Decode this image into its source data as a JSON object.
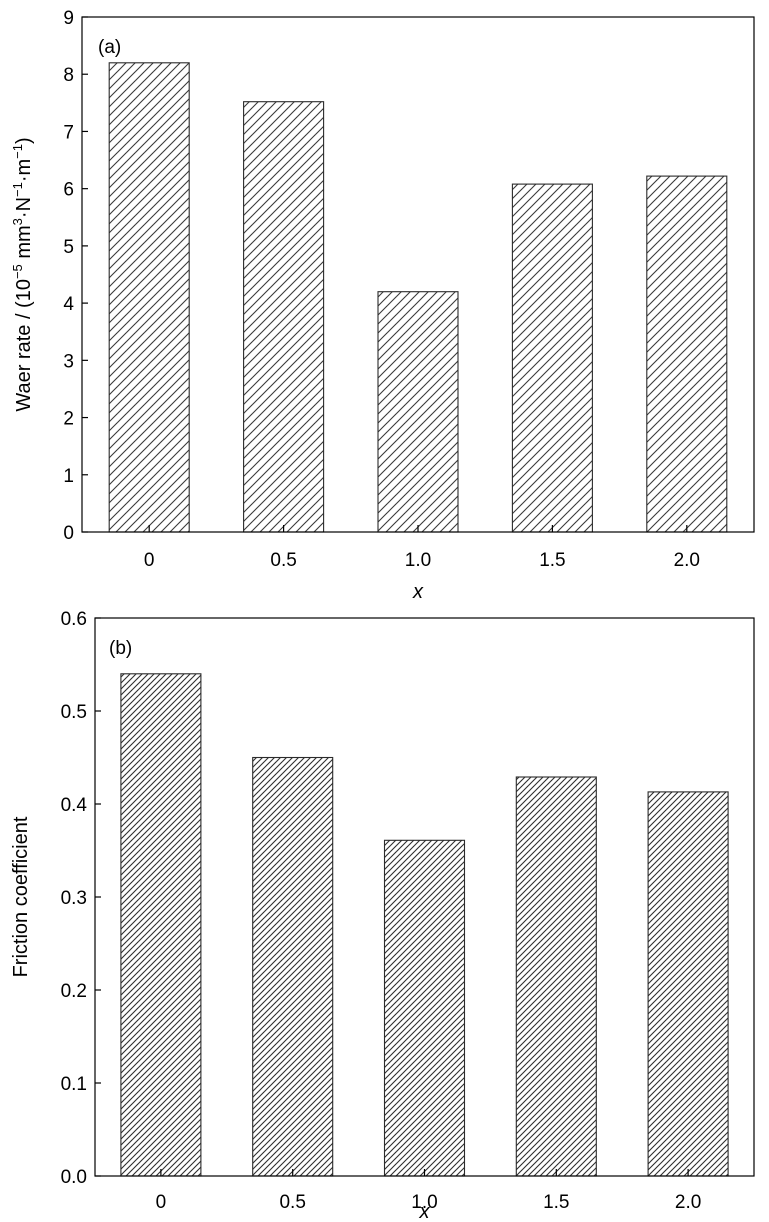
{
  "chart_data": [
    {
      "type": "bar",
      "panel_label": "(a)",
      "categories": [
        "0",
        "0.5",
        "1.0",
        "1.5",
        "2.0"
      ],
      "values": [
        8.2,
        7.52,
        4.2,
        6.08,
        6.22
      ],
      "xlabel": "x",
      "ylabel": {
        "prefix": "Waer rate / (10",
        "exp1": "−5",
        "mid1": " mm",
        "exp2": "3",
        "mid2": "·N",
        "exp3": "−1",
        "mid3": "·m",
        "exp4": "−1",
        "suffix": ")"
      },
      "ylim": [
        0,
        9
      ],
      "yticks": [
        "0",
        "1",
        "2",
        "3",
        "4",
        "5",
        "6",
        "7",
        "8",
        "9"
      ],
      "grid": false,
      "legend": "none",
      "bar_fill": "diagonal-hatch"
    },
    {
      "type": "bar",
      "panel_label": "(b)",
      "categories": [
        "0",
        "0.5",
        "1.0",
        "1.5",
        "2.0"
      ],
      "values": [
        0.54,
        0.45,
        0.361,
        0.429,
        0.413
      ],
      "xlabel": "x",
      "ylabel": "Friction coefficient",
      "ylim": [
        0,
        0.6
      ],
      "yticks": [
        "0.0",
        "0.1",
        "0.2",
        "0.3",
        "0.4",
        "0.5",
        "0.6"
      ],
      "grid": false,
      "legend": "none",
      "bar_fill": "dense-diagonal-hatch"
    }
  ],
  "colors": {
    "axis": "#000000",
    "bar_edge": "#2b2b2b",
    "hatch": "#3a3a3a",
    "background": "#ffffff"
  }
}
